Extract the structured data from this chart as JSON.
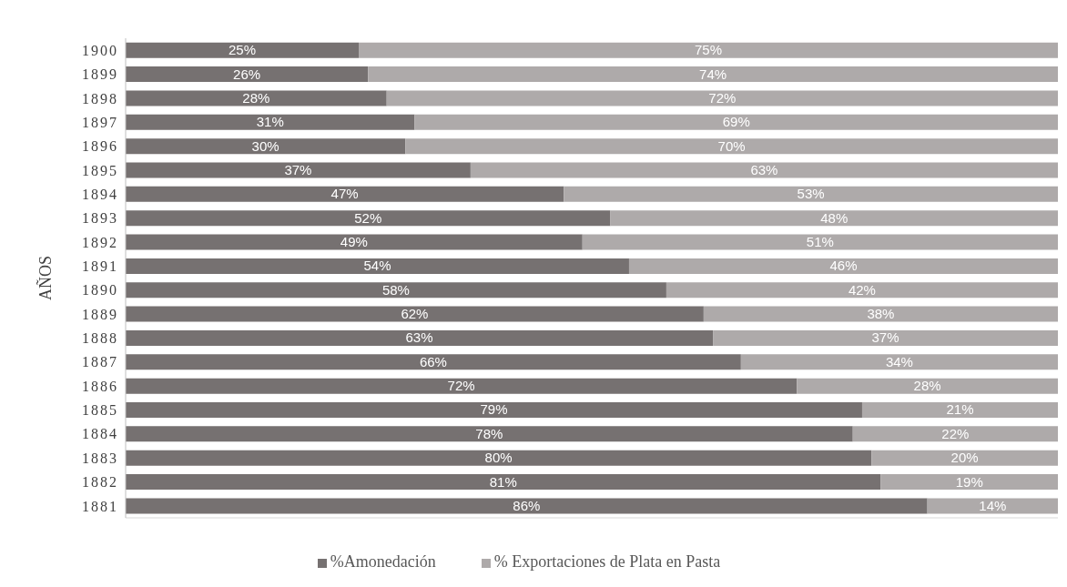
{
  "chart_data": {
    "type": "bar",
    "orientation": "horizontal",
    "stacked": true,
    "ylabel": "AÑOS",
    "legend": "bottom",
    "grid": false,
    "xlim": [
      0,
      100
    ],
    "tick_labels": "y",
    "categories": [
      "1900",
      "1899",
      "1898",
      "1897",
      "1896",
      "1895",
      "1894",
      "1893",
      "1892",
      "1891",
      "1890",
      "1889",
      "1888",
      "1887",
      "1886",
      "1885",
      "1884",
      "1883",
      "1882",
      "1881"
    ],
    "series": [
      {
        "name": "%Amonedación",
        "color": "#767171",
        "values": [
          25,
          26,
          28,
          31,
          30,
          37,
          47,
          52,
          49,
          54,
          58,
          62,
          63,
          66,
          72,
          79,
          78,
          80,
          81,
          86
        ],
        "value_labels": [
          "25%",
          "26%",
          "28%",
          "31%",
          "30%",
          "37%",
          "47%",
          "52%",
          "49%",
          "54%",
          "58%",
          "62%",
          "63%",
          "66%",
          "72%",
          "79%",
          "78%",
          "80%",
          "81%",
          "86%"
        ]
      },
      {
        "name": "% Exportaciones de Plata en Pasta",
        "color": "#aeaaaa",
        "values": [
          75,
          74,
          72,
          69,
          70,
          63,
          53,
          48,
          51,
          46,
          42,
          38,
          37,
          34,
          28,
          21,
          22,
          20,
          19,
          14
        ],
        "value_labels": [
          "75%",
          "74%",
          "72%",
          "69%",
          "70%",
          "63%",
          "53%",
          "48%",
          "51%",
          "46%",
          "42%",
          "38%",
          "37%",
          "34%",
          "28%",
          "21%",
          "22%",
          "20%",
          "19%",
          "14%"
        ]
      }
    ]
  }
}
